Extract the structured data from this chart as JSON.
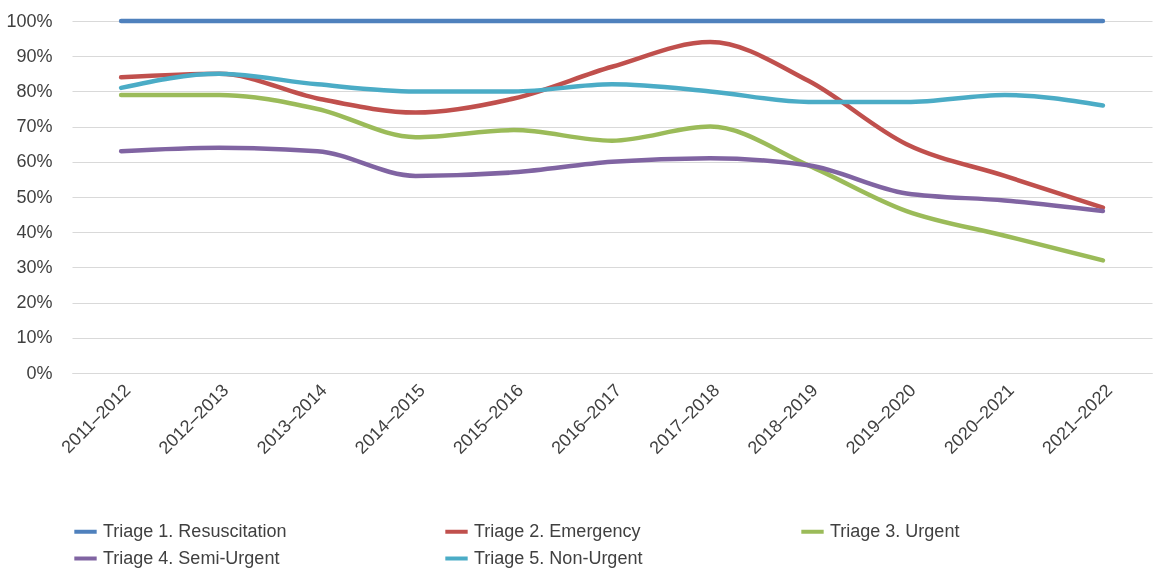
{
  "chart_data": {
    "type": "line",
    "categories": [
      "2011–2012",
      "2012–2013",
      "2013–2014",
      "2014–2015",
      "2015–2016",
      "2016–2017",
      "2017–2018",
      "2018–2019",
      "2019–2020",
      "2020–2021",
      "2021–2022"
    ],
    "series": [
      {
        "name": "Triage 1. Resuscitation",
        "color": "#4f81bd",
        "values": [
          100,
          100,
          100,
          100,
          100,
          100,
          100,
          100,
          100,
          100,
          100
        ]
      },
      {
        "name": "Triage 2. Emergency",
        "color": "#c0504d",
        "values": [
          84,
          85,
          78,
          74,
          78,
          87,
          94,
          83,
          65,
          56,
          47
        ]
      },
      {
        "name": "Triage 3. Urgent",
        "color": "#9bbb59",
        "values": [
          79,
          79,
          75,
          67,
          69,
          66,
          70,
          59,
          46,
          39,
          32
        ]
      },
      {
        "name": "Triage 4. Semi-Urgent",
        "color": "#8064a2",
        "values": [
          63,
          64,
          63,
          56,
          57,
          60,
          61,
          59,
          51,
          49,
          46
        ]
      },
      {
        "name": "Triage 5. Non-Urgent",
        "color": "#4bacc6",
        "values": [
          81,
          85,
          82,
          80,
          80,
          82,
          80,
          77,
          77,
          79,
          76
        ]
      }
    ],
    "ylim": [
      0,
      100
    ],
    "yticks": [
      {
        "value": 0,
        "label": "0%"
      },
      {
        "value": 10,
        "label": "10%"
      },
      {
        "value": 20,
        "label": "20%"
      },
      {
        "value": 30,
        "label": "30%"
      },
      {
        "value": 40,
        "label": "40%"
      },
      {
        "value": 50,
        "label": "50%"
      },
      {
        "value": 60,
        "label": "60%"
      },
      {
        "value": 70,
        "label": "70%"
      },
      {
        "value": 80,
        "label": "80%"
      },
      {
        "value": 90,
        "label": "90%"
      },
      {
        "value": 100,
        "label": "100%"
      }
    ],
    "grid": "y",
    "legend": "bottom",
    "marker": "none",
    "line_style": "solid"
  }
}
